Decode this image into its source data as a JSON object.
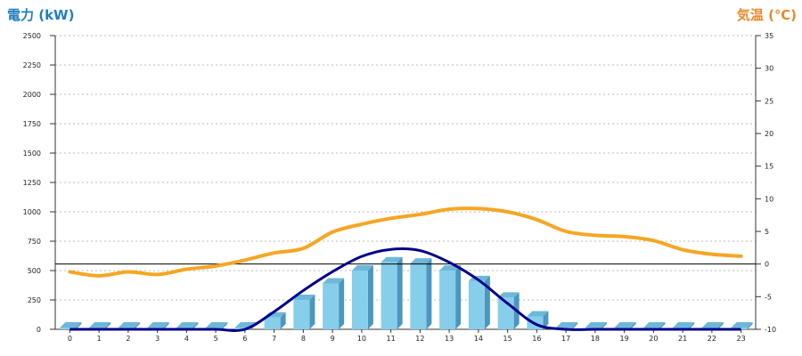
{
  "chart_data": {
    "type": "bar",
    "x_categories": [
      "0",
      "1",
      "2",
      "3",
      "4",
      "5",
      "6",
      "7",
      "8",
      "9",
      "10",
      "11",
      "12",
      "13",
      "14",
      "15",
      "16",
      "17",
      "18",
      "19",
      "20",
      "21",
      "22",
      "23"
    ],
    "y_left": {
      "label": "電力 (kW)",
      "ticks": [
        "0",
        "250",
        "500",
        "750",
        "1000",
        "1250",
        "1500",
        "1750",
        "2000",
        "2250",
        "2500"
      ],
      "range": [
        0,
        2500
      ]
    },
    "y_right": {
      "label": "気温 (℃)",
      "ticks": [
        "-10",
        "-5",
        "0",
        "5",
        "10",
        "15",
        "20",
        "25",
        "30",
        "35"
      ],
      "range": [
        -10,
        35
      ]
    },
    "grid": true,
    "reference_line_temp": 0,
    "series": [
      {
        "kind": "bar",
        "axis": "left",
        "color": "#87CEEB",
        "values": [
          15,
          15,
          15,
          15,
          15,
          15,
          15,
          100,
          250,
          390,
          500,
          570,
          560,
          500,
          410,
          270,
          110,
          15,
          15,
          15,
          15,
          15,
          15,
          15
        ]
      },
      {
        "kind": "line",
        "axis": "left",
        "color": "#00008B",
        "values": [
          0,
          0,
          0,
          0,
          0,
          0,
          0,
          150,
          330,
          490,
          620,
          680,
          670,
          570,
          420,
          220,
          40,
          0,
          0,
          0,
          0,
          0,
          0,
          0
        ]
      },
      {
        "kind": "line",
        "axis": "right",
        "color": "#F5A623",
        "values": [
          -1.2,
          -1.8,
          -1.2,
          -1.6,
          -0.8,
          -0.3,
          0.6,
          1.7,
          2.4,
          4.9,
          6.1,
          7.0,
          7.6,
          8.4,
          8.5,
          8.0,
          6.8,
          5.0,
          4.4,
          4.2,
          3.6,
          2.2,
          1.5,
          1.2
        ]
      }
    ]
  }
}
